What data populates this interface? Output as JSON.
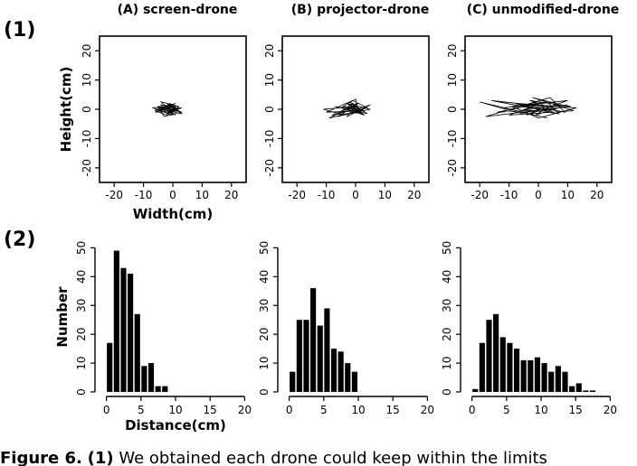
{
  "figure": {
    "row_labels": [
      "(1)",
      "(2)"
    ],
    "panel_titles": [
      "(A) screen-drone",
      "(B) projector-drone",
      "(C) unmodified-drone"
    ],
    "caption": {
      "label": "Figure 6.",
      "ref": "(1)",
      "text": "We obtained each drone could keep within the limits"
    }
  },
  "chart_data": [
    {
      "type": "line",
      "panel": "A",
      "row": 1,
      "xlabel": "Width(cm)",
      "ylabel": "Height(cm)",
      "xlim": [
        -25,
        25
      ],
      "ylim": [
        -25,
        25
      ],
      "xticks": [
        -20,
        -10,
        0,
        10,
        20
      ],
      "yticks": [
        -20,
        -10,
        0,
        10,
        20
      ],
      "grid": false,
      "x": [
        -1,
        -3,
        0,
        -5,
        1,
        -6,
        -2,
        2,
        -4,
        0,
        -7,
        -1,
        3,
        -3,
        -5,
        1,
        -2,
        2,
        -6,
        0,
        -4,
        3,
        -1,
        -3,
        1,
        -5,
        0,
        2,
        -2,
        -4,
        1,
        -1,
        3,
        -6,
        0,
        -3,
        2,
        -1
      ],
      "y": [
        0,
        1.5,
        -1,
        0.5,
        2,
        -0.5,
        -2,
        1,
        2.5,
        -1.5,
        0.5,
        1,
        -1,
        -2.5,
        1,
        0.5,
        2,
        -0.5,
        -1,
        1.5,
        0,
        -1.5,
        2,
        0.5,
        -2,
        1,
        -0.5,
        0.5,
        -1.5,
        1.5,
        1,
        -1,
        0.5,
        0,
        -2,
        1,
        -0.5,
        0
      ]
    },
    {
      "type": "line",
      "panel": "B",
      "row": 1,
      "xlabel": "",
      "ylabel": "",
      "xlim": [
        -25,
        25
      ],
      "ylim": [
        -25,
        25
      ],
      "xticks": [
        -20,
        -10,
        0,
        10,
        20
      ],
      "yticks": [
        -20,
        -10,
        0,
        10,
        20
      ],
      "grid": false,
      "x": [
        0,
        -4,
        2,
        -8,
        1,
        -2,
        3,
        -10,
        -1,
        4,
        -6,
        0,
        2,
        -3,
        5,
        -9,
        -1,
        3,
        -5,
        0,
        1,
        -7,
        4,
        -2,
        2,
        -4,
        -11,
        0,
        3,
        -1,
        -6,
        2,
        5,
        -3,
        0,
        1
      ],
      "y": [
        0,
        1,
        -1,
        -2,
        2,
        1.5,
        -0.5,
        -1,
        3,
        0.5,
        -2.5,
        1.5,
        -1.5,
        2,
        0,
        -3,
        1,
        -2,
        0.5,
        3.5,
        -1,
        1,
        -1.5,
        2.5,
        -0.5,
        -2,
        0,
        1,
        -1,
        2,
        -1.5,
        0.5,
        1.5,
        -2.5,
        1,
        0
      ]
    },
    {
      "type": "line",
      "panel": "C",
      "row": 1,
      "xlabel": "",
      "ylabel": "",
      "xlim": [
        -25,
        25
      ],
      "ylim": [
        -25,
        25
      ],
      "xticks": [
        -20,
        -10,
        0,
        10,
        20
      ],
      "yticks": [
        -20,
        -10,
        0,
        10,
        20
      ],
      "grid": false,
      "x": [
        0,
        -8,
        5,
        -16,
        2,
        -4,
        10,
        -12,
        3,
        -20,
        -6,
        8,
        -2,
        12,
        -10,
        1,
        -14,
        6,
        -3,
        11,
        -18,
        4,
        9,
        -7,
        13,
        0,
        -9,
        3,
        7,
        -5,
        10,
        -1,
        2
      ],
      "y": [
        0,
        2,
        -1,
        3,
        1,
        -2,
        3,
        0.5,
        -3,
        2.5,
        -1.5,
        1.5,
        4,
        -0.5,
        -2,
        2,
        -1,
        0,
        3,
        1,
        -2.5,
        4,
        -1,
        2,
        0.5,
        -3,
        1,
        2.5,
        -1.5,
        0,
        1.5,
        -2,
        0
      ]
    },
    {
      "type": "bar",
      "panel": "A",
      "row": 2,
      "xlabel": "Distance(cm)",
      "ylabel": "Number",
      "xlim": [
        -1,
        21
      ],
      "ylim": [
        0,
        52
      ],
      "xticks": [
        0,
        5,
        10,
        15,
        20
      ],
      "yticks": [
        0,
        10,
        20,
        30,
        40,
        50
      ],
      "bin_width": 1,
      "bin_starts": [
        0,
        1,
        2,
        3,
        4,
        5,
        6,
        7,
        8
      ],
      "values": [
        17,
        49,
        43,
        41,
        27,
        9,
        10,
        2,
        2
      ]
    },
    {
      "type": "bar",
      "panel": "B",
      "row": 2,
      "xlabel": "",
      "ylabel": "",
      "xlim": [
        -1,
        21
      ],
      "ylim": [
        0,
        52
      ],
      "xticks": [
        0,
        5,
        10,
        15,
        20
      ],
      "yticks": [
        0,
        10,
        20,
        30,
        40,
        50
      ],
      "bin_width": 1,
      "bin_starts": [
        0,
        1,
        2,
        3,
        4,
        5,
        6,
        7,
        8,
        9
      ],
      "values": [
        7,
        25,
        25,
        36,
        23,
        29,
        15,
        14,
        10,
        7
      ]
    },
    {
      "type": "bar",
      "panel": "C",
      "row": 2,
      "xlabel": "",
      "ylabel": "",
      "xlim": [
        -1,
        21
      ],
      "ylim": [
        0,
        52
      ],
      "xticks": [
        0,
        5,
        10,
        15,
        20
      ],
      "yticks": [
        0,
        10,
        20,
        30,
        40,
        50
      ],
      "bin_width": 1,
      "bin_starts": [
        0,
        1,
        2,
        3,
        4,
        5,
        6,
        7,
        8,
        9,
        10,
        11,
        12,
        13,
        14,
        15,
        16,
        17
      ],
      "values": [
        1,
        17,
        25,
        27,
        19,
        17,
        15,
        11,
        11,
        12,
        10,
        7,
        9,
        7,
        2,
        3,
        0.5,
        0.5
      ]
    }
  ]
}
